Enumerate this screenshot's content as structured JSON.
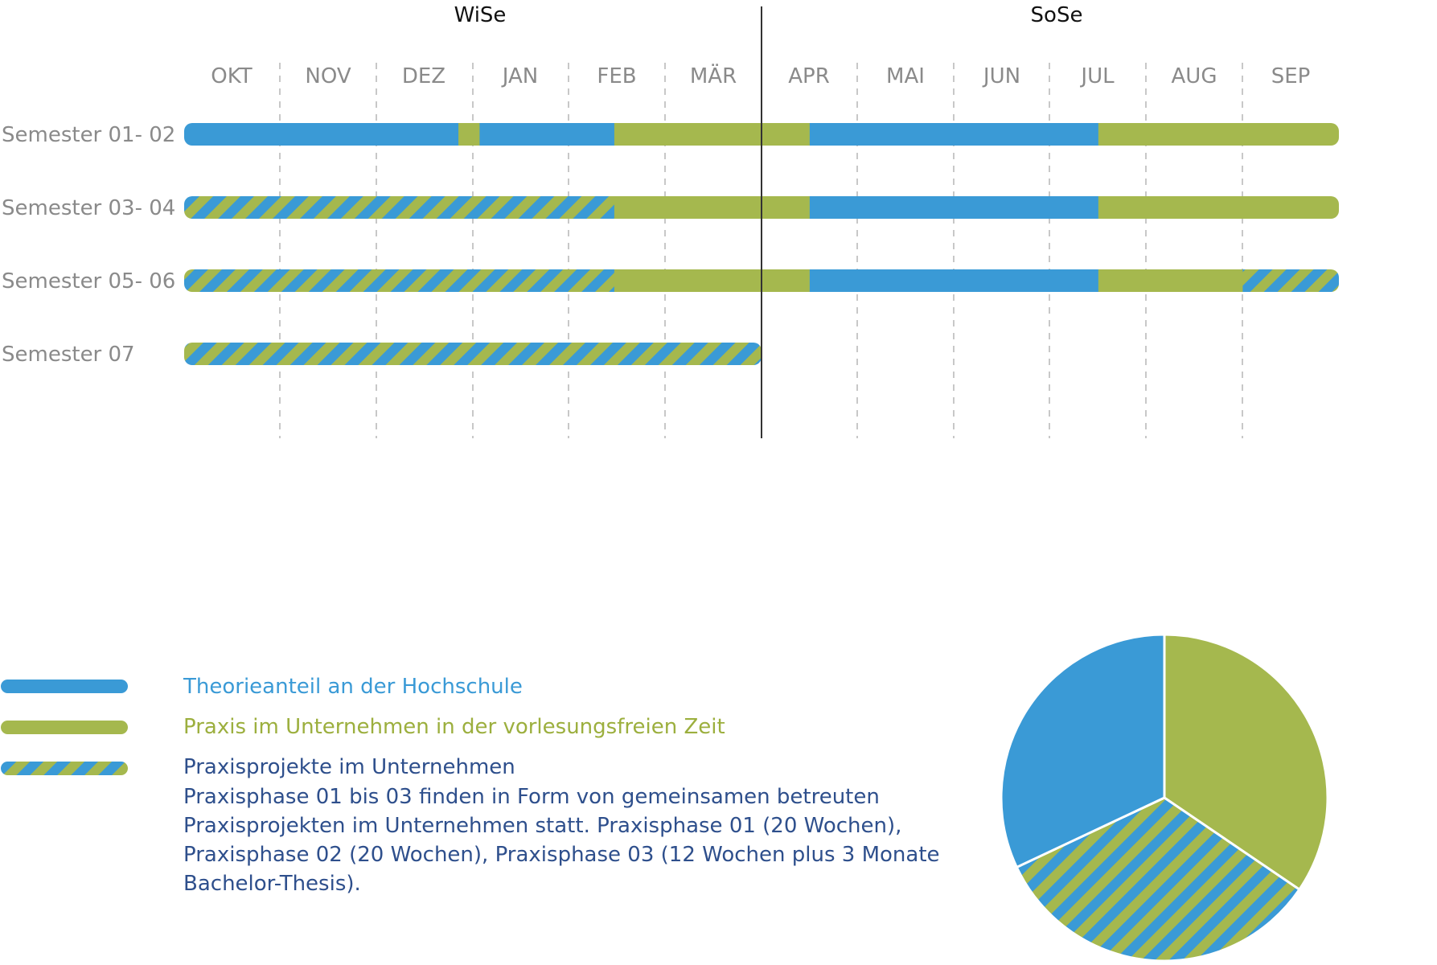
{
  "colors": {
    "theory": "#3A9AD6",
    "practice": "#A5B84E",
    "project_text": "#2E4F8C",
    "row_label": "#8A8A8A",
    "month_label": "#8A8A8A",
    "term_label": "#111111",
    "grid": "#C8C8C8",
    "divider": "#333333"
  },
  "terms": [
    "WiSe",
    "SoSe"
  ],
  "months": [
    "OKT",
    "NOV",
    "DEZ",
    "JAN",
    "FEB",
    "MÄR",
    "APR",
    "MAI",
    "JUN",
    "JUL",
    "AUG",
    "SEP"
  ],
  "rows": [
    {
      "label": "Semester 01- 02",
      "segments": [
        {
          "start": 0,
          "end": 2.85,
          "kind": "theory"
        },
        {
          "start": 2.85,
          "end": 3.07,
          "kind": "practice"
        },
        {
          "start": 3.07,
          "end": 4.47,
          "kind": "theory"
        },
        {
          "start": 4.47,
          "end": 6.5,
          "kind": "practice"
        },
        {
          "start": 6.5,
          "end": 9.5,
          "kind": "theory"
        },
        {
          "start": 9.5,
          "end": 12,
          "kind": "practice"
        }
      ]
    },
    {
      "label": "Semester 03- 04",
      "segments": [
        {
          "start": 0,
          "end": 4.47,
          "kind": "project"
        },
        {
          "start": 4.47,
          "end": 6.5,
          "kind": "practice"
        },
        {
          "start": 6.5,
          "end": 9.5,
          "kind": "theory"
        },
        {
          "start": 9.5,
          "end": 12,
          "kind": "practice"
        }
      ]
    },
    {
      "label": "Semester 05- 06",
      "segments": [
        {
          "start": 0,
          "end": 4.47,
          "kind": "project"
        },
        {
          "start": 4.47,
          "end": 6.5,
          "kind": "practice"
        },
        {
          "start": 6.5,
          "end": 9.5,
          "kind": "theory"
        },
        {
          "start": 9.5,
          "end": 11.0,
          "kind": "practice"
        },
        {
          "start": 11.0,
          "end": 12,
          "kind": "project"
        }
      ]
    },
    {
      "label": "Semester 07",
      "segments": [
        {
          "start": 0,
          "end": 6.0,
          "kind": "project"
        }
      ]
    }
  ],
  "legend": {
    "theory_label": "Theorieanteil an der Hochschule",
    "practice_label": "Praxis im Unternehmen in der vorlesungsfreien Zeit",
    "project_label": "Praxisprojekte im Unternehmen",
    "project_description": [
      "Praxisphase 01 bis 03 finden in Form von gemeinsamen betreuten",
      "Praxisprojekten im Unternehmen statt. Praxisphase 01 (20 Wochen),",
      "Praxisphase 02 (20 Wochen), Praxisphase 03 (12 Wochen plus 3 Monate",
      "Bachelor-Thesis)."
    ]
  },
  "pie": {
    "slices": [
      {
        "kind": "practice",
        "value": 34.5
      },
      {
        "kind": "project",
        "value": 33.5
      },
      {
        "kind": "theory",
        "value": 32.0
      }
    ]
  }
}
